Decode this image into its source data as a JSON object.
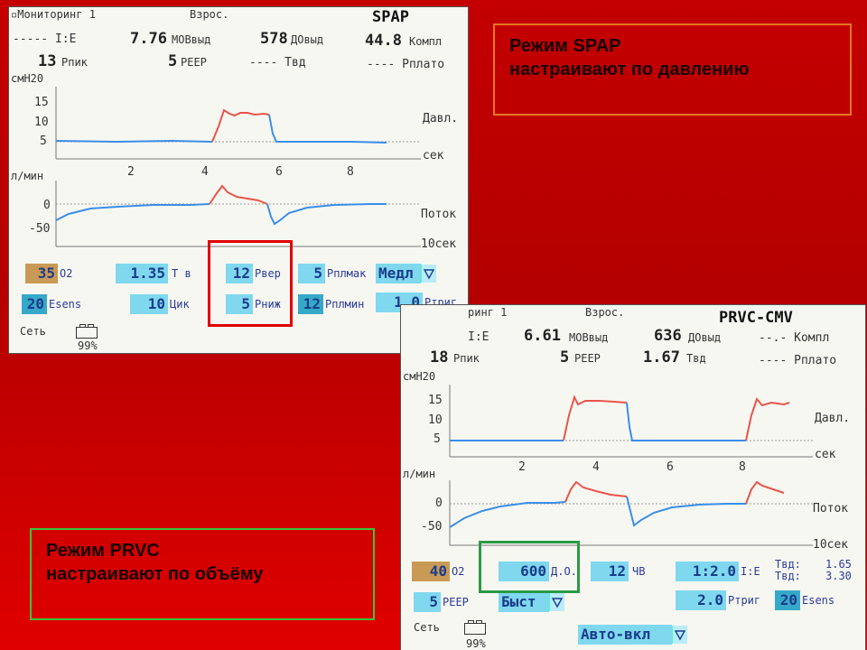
{
  "screen1": {
    "header": {
      "title": "Мониторинг 1",
      "patient": "Взрос.",
      "mode": "SPAP"
    },
    "row1": {
      "ie": "----- I:E",
      "mv_val": "7.76",
      "mv_lbl": "МОВвыд",
      "vt_val": "578",
      "vt_lbl": "ДОвыд",
      "compl_val": "44.8",
      "compl_lbl": "Компл"
    },
    "row2": {
      "ppeak_val": "13",
      "ppeak_lbl": "Рпик",
      "peep_val": "5",
      "peep_lbl": "PEEP",
      "tin": "---- Твд",
      "pplat": "---- Рплато"
    },
    "pressure": {
      "unit": "смН20",
      "ticks": [
        "15",
        "10",
        "5"
      ],
      "label": "Давл.",
      "time_label": "сек"
    },
    "time_ticks": [
      "2",
      "4",
      "6",
      "8"
    ],
    "flow": {
      "unit": "л/мин",
      "ticks": [
        "0",
        "-50"
      ],
      "label": "Поток",
      "time_label": "10сек"
    },
    "settings": {
      "o2_val": "35",
      "o2_lbl": "O2",
      "ti_val": "1.35",
      "ti_lbl": "T в",
      "phigh_val": "12",
      "phigh_lbl": "Рвер",
      "pmax_val": "5",
      "pmax_lbl": "Рплмак",
      "slope_val": "Медл",
      "esens_val": "20",
      "esens_lbl": "Esens",
      "cyc_val": "10",
      "cyc_lbl": "Цик",
      "plow_val": "5",
      "plow_lbl": "Рниж",
      "pmin_val": "12",
      "pmin_lbl": "Рплмин",
      "ptrig_val": "1.0",
      "ptrig_lbl": "Ртриг"
    },
    "footer": {
      "power": "Сеть",
      "battery": "99%"
    }
  },
  "screen2": {
    "header": {
      "title": "ринг 1",
      "patient": "Взрос.",
      "mode": "PRVC-CMV"
    },
    "row1": {
      "ie": "I:E",
      "mv_val": "6.61",
      "mv_lbl": "МОВвыд",
      "vt_val": "636",
      "vt_lbl": "ДОвыд",
      "compl": "--.- Компл"
    },
    "row2": {
      "ppeak_val": "18",
      "ppeak_lbl": "Рпик",
      "peep_val": "5",
      "peep_lbl": "PEEP",
      "tin_val": "1.67",
      "tin_lbl": "Твд",
      "pplat": "---- Рплато"
    },
    "pressure": {
      "unit": "смН20",
      "ticks": [
        "15",
        "10",
        "5"
      ],
      "label": "Давл.",
      "time_label": "сек"
    },
    "time_ticks": [
      "2",
      "4",
      "6",
      "8"
    ],
    "flow": {
      "unit": "л/мин",
      "ticks": [
        "0",
        "-50"
      ],
      "label": "Поток",
      "time_label": "10сек"
    },
    "settings": {
      "o2_val": "40",
      "o2_lbl": "O2",
      "vt_val": "600",
      "vt_lbl": "Д.О.",
      "rr_val": "12",
      "rr_lbl": "ЧВ",
      "ie_val": "1:2.0",
      "ie_lbl": "I:E",
      "tin_lbl": "Твд:",
      "tin_val": "1.65",
      "tex_lbl": "Твд:",
      "tex_val": "3.30",
      "peep_val": "5",
      "peep_lbl": "PEEP",
      "slope_val": "Быст",
      "ptrig_val": "2.0",
      "ptrig_lbl": "Ртриг",
      "esens_val": "20",
      "esens_lbl": "Esens",
      "auto_val": "Авто-вкл"
    },
    "footer": {
      "power": "Сеть",
      "battery": "99%"
    }
  },
  "notes": {
    "spap": [
      "Режим SPAP",
      "настраивают по давлению"
    ],
    "prvc": [
      "Режим PRVC",
      "настраивают по объёму"
    ]
  },
  "colors": {
    "background": "#c00000",
    "spap_box": "#e7781e",
    "prvc_box": "#3cc43a",
    "highlight_red": "#e00000",
    "highlight_green": "#2a9a44",
    "trace_blue": "#3a8ee8",
    "trace_red": "#e8554a",
    "setting_cyan": "#7fd8ee",
    "setting_o2": "#c99a55"
  }
}
